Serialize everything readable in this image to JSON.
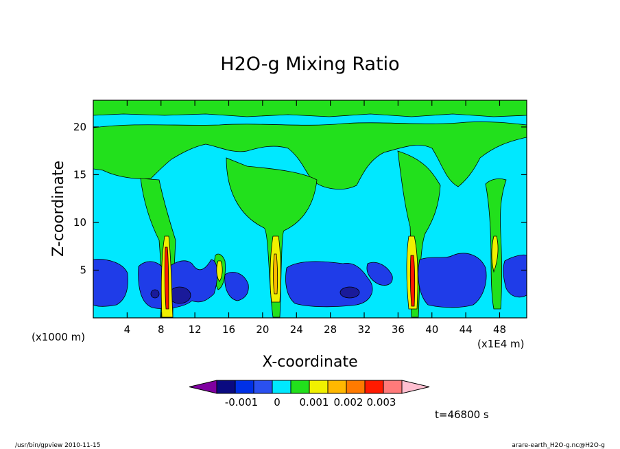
{
  "chart_data": {
    "type": "heatmap",
    "title": "H2O-g Mixing Ratio",
    "xlabel": "X-coordinate",
    "ylabel": "Z-coordinate",
    "x_unit_left": "(x1000 m)",
    "x_unit_right": "(x1E4 m)",
    "xlim": [
      0,
      51.2
    ],
    "ylim": [
      0,
      22.8
    ],
    "x_ticks": [
      4,
      8,
      12,
      16,
      20,
      24,
      28,
      32,
      36,
      40,
      44,
      48
    ],
    "y_ticks": [
      5,
      10,
      15,
      20
    ],
    "colorbar": {
      "colors": [
        "#7f00a0",
        "#0a0a80",
        "#0030e6",
        "#2a50f0",
        "#00e8ff",
        "#22e01c",
        "#f0f000",
        "#ffb800",
        "#ff7a00",
        "#ff1a00",
        "#ff7a7a",
        "#ffbfd0"
      ],
      "labels": [
        "-0.001",
        "0",
        "0.001",
        "0.002",
        "0.003"
      ]
    },
    "time_label": "t=46800 s",
    "footer_left": "/usr/bin/gpview   2010-11-15",
    "footer_right": "arare-earth_H2O-g.nc@H2O-g",
    "field_colors": {
      "background": "#00e8ff",
      "green": "#22e01c",
      "blue": "#1f3ce8",
      "dark_blue": "#1a1a9a",
      "yellow": "#f0f000",
      "orange": "#ffb800",
      "red": "#ff1a00"
    }
  }
}
